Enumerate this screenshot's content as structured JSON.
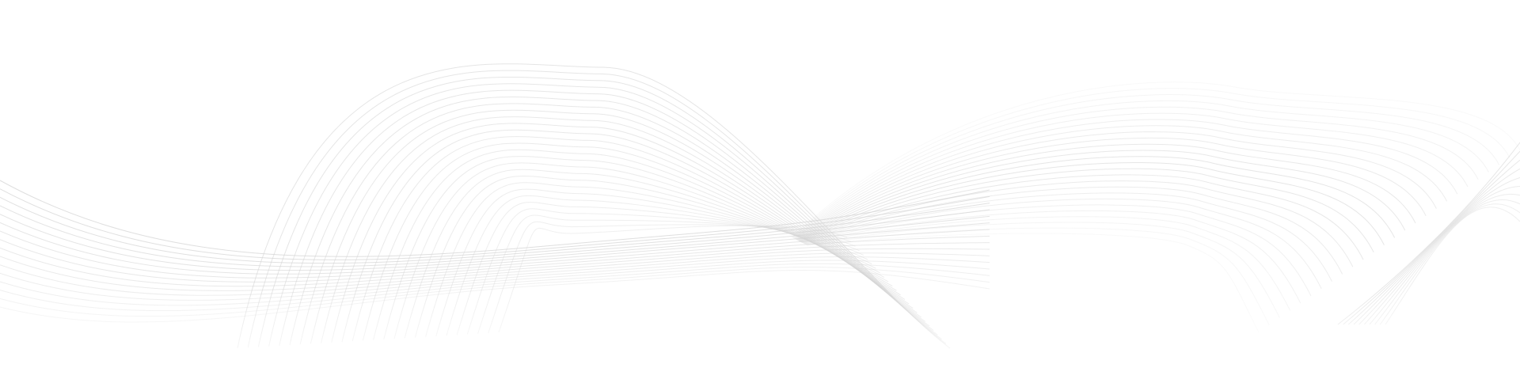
{
  "background": {
    "color": "#ffffff",
    "line_color": "#d4d4d4"
  }
}
